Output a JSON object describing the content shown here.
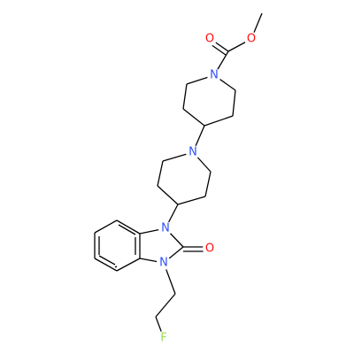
{
  "atoms": [
    {
      "label": "O"
    },
    {
      "label": "O"
    },
    {
      "label": "N"
    },
    {
      "label": "N"
    },
    {
      "label": "N"
    },
    {
      "label": "O"
    },
    {
      "label": "N"
    },
    {
      "label": "F"
    }
  ]
}
